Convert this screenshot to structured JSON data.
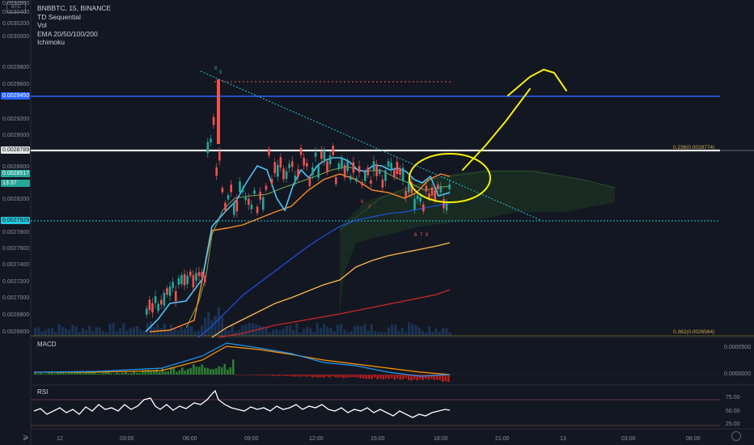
{
  "legend": {
    "symbol_line": "BNBBTC, 15, BINANCE",
    "studies": [
      "TD Sequential",
      "Vol",
      "EMA 20/50/100/200",
      "Ichimoku"
    ]
  },
  "symbol_badge": "BTC",
  "price_axis": {
    "ticks": [
      "0.0030600",
      "0.0030400",
      "0.0030200",
      "0.0030000",
      "0.0029800",
      "0.0029600",
      "0.0029200",
      "0.0029000",
      "0.0028600",
      "0.0028400",
      "0.0028200",
      "0.0027800",
      "0.0027600",
      "0.0027400",
      "0.0027200",
      "0.0027000",
      "0.0026800",
      "0.0026600"
    ],
    "tags": {
      "blue_level": "0.0029450",
      "white_level": "0.0028789",
      "last_price": "0.0028517",
      "countdown": "13:37",
      "dotted_level": "0.0027929"
    }
  },
  "fib_labels": {
    "f236": "0.236(0.0028774)",
    "f382": "0.382(0.0026564)"
  },
  "time_axis": [
    "12",
    "03:00",
    "06:00",
    "09:00",
    "12:00",
    "15:00",
    "18:00",
    "21:00",
    "13",
    "03:00",
    "06:00"
  ],
  "macd": {
    "label": "MACD",
    "ticks": [
      "0.0000500",
      "0.0000000"
    ]
  },
  "rsi": {
    "label": "RSI",
    "ticks": [
      "75.00",
      "50.00",
      "25.00"
    ]
  },
  "colors": {
    "background": "#131722",
    "up": "#26a69a",
    "down": "#ef5350",
    "blue_line": "#2962ff",
    "annotation": "#f5f00a"
  },
  "td_counts": {
    "top_pair": [
      "8",
      "9"
    ],
    "bottom_row": [
      "6",
      "7",
      "8"
    ],
    "mid_marks": [
      "6",
      "7"
    ]
  }
}
